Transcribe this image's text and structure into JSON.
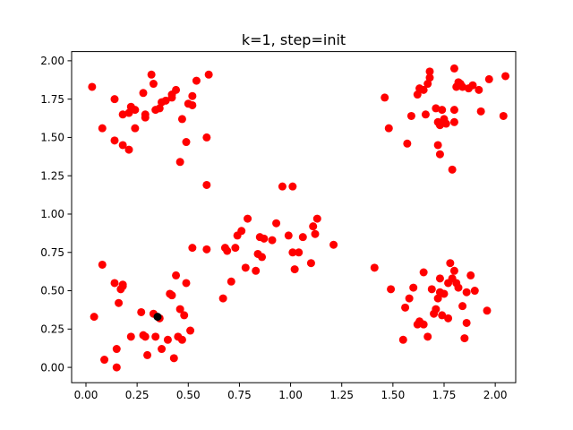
{
  "chart_data": {
    "type": "scatter",
    "title": "k=1, step=init",
    "xlabel": "",
    "ylabel": "",
    "xlim": [
      -0.07,
      2.1
    ],
    "ylim": [
      -0.1,
      2.06
    ],
    "xticks": [
      0.0,
      0.25,
      0.5,
      0.75,
      1.0,
      1.25,
      1.5,
      1.75,
      2.0
    ],
    "xtick_labels": [
      "0.00",
      "0.25",
      "0.50",
      "0.75",
      "1.00",
      "1.25",
      "1.50",
      "1.75",
      "2.00"
    ],
    "yticks": [
      0.0,
      0.25,
      0.5,
      0.75,
      1.0,
      1.25,
      1.5,
      1.75,
      2.0
    ],
    "ytick_labels": [
      "0.00",
      "0.25",
      "0.50",
      "0.75",
      "1.00",
      "1.25",
      "1.50",
      "1.75",
      "2.00"
    ],
    "grid": false,
    "legend": "none",
    "series": [
      {
        "color": "#ff0000",
        "marker": "circle",
        "points": [
          [
            0.03,
            1.83
          ],
          [
            0.08,
            1.56
          ],
          [
            0.14,
            1.48
          ],
          [
            0.14,
            1.75
          ],
          [
            0.18,
            1.45
          ],
          [
            0.18,
            1.65
          ],
          [
            0.21,
            1.42
          ],
          [
            0.21,
            1.66
          ],
          [
            0.22,
            1.7
          ],
          [
            0.24,
            1.56
          ],
          [
            0.24,
            1.68
          ],
          [
            0.28,
            1.79
          ],
          [
            0.29,
            1.63
          ],
          [
            0.29,
            1.65
          ],
          [
            0.32,
            1.91
          ],
          [
            0.33,
            1.85
          ],
          [
            0.34,
            1.68
          ],
          [
            0.36,
            1.69
          ],
          [
            0.37,
            1.73
          ],
          [
            0.39,
            1.74
          ],
          [
            0.42,
            1.76
          ],
          [
            0.42,
            1.78
          ],
          [
            0.44,
            1.81
          ],
          [
            0.46,
            1.34
          ],
          [
            0.47,
            1.62
          ],
          [
            0.49,
            1.47
          ],
          [
            0.5,
            1.72
          ],
          [
            0.52,
            1.71
          ],
          [
            0.52,
            1.77
          ],
          [
            0.54,
            1.87
          ],
          [
            0.59,
            1.5
          ],
          [
            0.59,
            1.19
          ],
          [
            0.6,
            1.91
          ],
          [
            1.46,
            1.76
          ],
          [
            1.48,
            1.56
          ],
          [
            1.57,
            1.46
          ],
          [
            1.59,
            1.64
          ],
          [
            1.62,
            1.78
          ],
          [
            1.63,
            1.82
          ],
          [
            1.65,
            1.81
          ],
          [
            1.66,
            1.65
          ],
          [
            1.67,
            1.85
          ],
          [
            1.68,
            1.89
          ],
          [
            1.68,
            1.93
          ],
          [
            1.71,
            1.69
          ],
          [
            1.72,
            1.6
          ],
          [
            1.72,
            1.45
          ],
          [
            1.73,
            1.39
          ],
          [
            1.73,
            1.58
          ],
          [
            1.74,
            1.68
          ],
          [
            1.75,
            1.62
          ],
          [
            1.76,
            1.59
          ],
          [
            1.79,
            1.29
          ],
          [
            1.8,
            1.95
          ],
          [
            1.8,
            1.68
          ],
          [
            1.8,
            1.6
          ],
          [
            1.81,
            1.83
          ],
          [
            1.82,
            1.86
          ],
          [
            1.83,
            1.85
          ],
          [
            1.84,
            1.83
          ],
          [
            1.87,
            1.82
          ],
          [
            1.89,
            1.84
          ],
          [
            1.92,
            1.81
          ],
          [
            1.93,
            1.67
          ],
          [
            1.97,
            1.88
          ],
          [
            2.04,
            1.64
          ],
          [
            2.05,
            1.9
          ],
          [
            0.04,
            0.33
          ],
          [
            0.08,
            0.67
          ],
          [
            0.09,
            0.05
          ],
          [
            0.14,
            0.55
          ],
          [
            0.15,
            0.0
          ],
          [
            0.15,
            0.12
          ],
          [
            0.16,
            0.42
          ],
          [
            0.17,
            0.51
          ],
          [
            0.18,
            0.54
          ],
          [
            0.18,
            0.53
          ],
          [
            0.22,
            0.2
          ],
          [
            0.27,
            0.36
          ],
          [
            0.28,
            0.21
          ],
          [
            0.29,
            0.2
          ],
          [
            0.3,
            0.08
          ],
          [
            0.33,
            0.35
          ],
          [
            0.34,
            0.2
          ],
          [
            0.36,
            0.32
          ],
          [
            0.37,
            0.12
          ],
          [
            0.4,
            0.18
          ],
          [
            0.41,
            0.48
          ],
          [
            0.42,
            0.47
          ],
          [
            0.43,
            0.06
          ],
          [
            0.44,
            0.6
          ],
          [
            0.45,
            0.2
          ],
          [
            0.46,
            0.38
          ],
          [
            0.47,
            0.18
          ],
          [
            0.48,
            0.34
          ],
          [
            0.49,
            0.55
          ],
          [
            0.51,
            0.24
          ],
          [
            0.52,
            0.78
          ],
          [
            0.59,
            0.77
          ],
          [
            0.67,
            0.45
          ],
          [
            0.68,
            0.78
          ],
          [
            0.69,
            0.76
          ],
          [
            0.71,
            0.56
          ],
          [
            0.73,
            0.78
          ],
          [
            0.74,
            0.86
          ],
          [
            0.76,
            0.89
          ],
          [
            0.78,
            0.65
          ],
          [
            0.79,
            0.97
          ],
          [
            0.83,
            0.63
          ],
          [
            0.84,
            0.74
          ],
          [
            0.85,
            0.85
          ],
          [
            0.86,
            0.72
          ],
          [
            0.87,
            0.84
          ],
          [
            0.91,
            0.83
          ],
          [
            0.93,
            0.94
          ],
          [
            0.96,
            1.18
          ],
          [
            0.99,
            0.86
          ],
          [
            1.01,
            1.18
          ],
          [
            1.01,
            0.75
          ],
          [
            1.02,
            0.64
          ],
          [
            1.04,
            0.75
          ],
          [
            1.06,
            0.85
          ],
          [
            1.1,
            0.68
          ],
          [
            1.11,
            0.92
          ],
          [
            1.12,
            0.87
          ],
          [
            1.13,
            0.97
          ],
          [
            1.21,
            0.8
          ],
          [
            1.41,
            0.65
          ],
          [
            1.49,
            0.51
          ],
          [
            1.55,
            0.18
          ],
          [
            1.56,
            0.39
          ],
          [
            1.58,
            0.45
          ],
          [
            1.6,
            0.52
          ],
          [
            1.62,
            0.28
          ],
          [
            1.63,
            0.3
          ],
          [
            1.65,
            0.28
          ],
          [
            1.65,
            0.62
          ],
          [
            1.67,
            0.2
          ],
          [
            1.69,
            0.51
          ],
          [
            1.7,
            0.35
          ],
          [
            1.71,
            0.38
          ],
          [
            1.72,
            0.45
          ],
          [
            1.73,
            0.49
          ],
          [
            1.73,
            0.58
          ],
          [
            1.74,
            0.34
          ],
          [
            1.75,
            0.48
          ],
          [
            1.77,
            0.55
          ],
          [
            1.77,
            0.32
          ],
          [
            1.78,
            0.68
          ],
          [
            1.79,
            0.58
          ],
          [
            1.8,
            0.63
          ],
          [
            1.81,
            0.55
          ],
          [
            1.82,
            0.52
          ],
          [
            1.84,
            0.4
          ],
          [
            1.85,
            0.19
          ],
          [
            1.86,
            0.29
          ],
          [
            1.86,
            0.49
          ],
          [
            1.88,
            0.6
          ],
          [
            1.9,
            0.5
          ],
          [
            1.96,
            0.37
          ]
        ]
      },
      {
        "color": "#000000",
        "marker": "circle",
        "points": [
          [
            0.35,
            0.33
          ]
        ]
      }
    ]
  }
}
